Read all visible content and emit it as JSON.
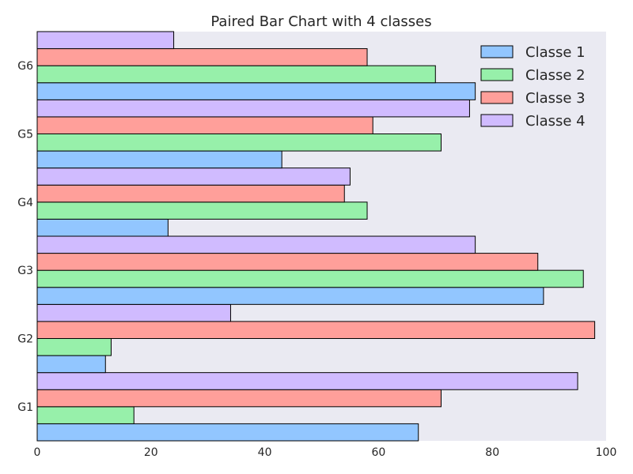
{
  "chart_data": {
    "type": "bar",
    "orientation": "horizontal",
    "title": "Paired Bar Chart with 4 classes",
    "xlabel": "",
    "ylabel": "",
    "categories": [
      "G1",
      "G2",
      "G3",
      "G4",
      "G5",
      "G6"
    ],
    "series": [
      {
        "name": "Classe 1",
        "color": "#92c6ff",
        "values": [
          67,
          12,
          89,
          23,
          43,
          77
        ]
      },
      {
        "name": "Classe 2",
        "color": "#97f0aa",
        "values": [
          17,
          13,
          96,
          58,
          71,
          70
        ]
      },
      {
        "name": "Classe 3",
        "color": "#ff9f9a",
        "values": [
          71,
          98,
          88,
          54,
          59,
          58
        ]
      },
      {
        "name": "Classe 4",
        "color": "#d0bbff",
        "values": [
          95,
          34,
          77,
          55,
          76,
          24
        ]
      }
    ],
    "xlim": [
      0,
      100
    ],
    "xticks": [
      "0",
      "20",
      "40",
      "60",
      "80",
      "100"
    ],
    "grid": false,
    "legend_position": "top-right",
    "background_color": "#eaeaf2",
    "bar_edge_color": "#000000"
  }
}
